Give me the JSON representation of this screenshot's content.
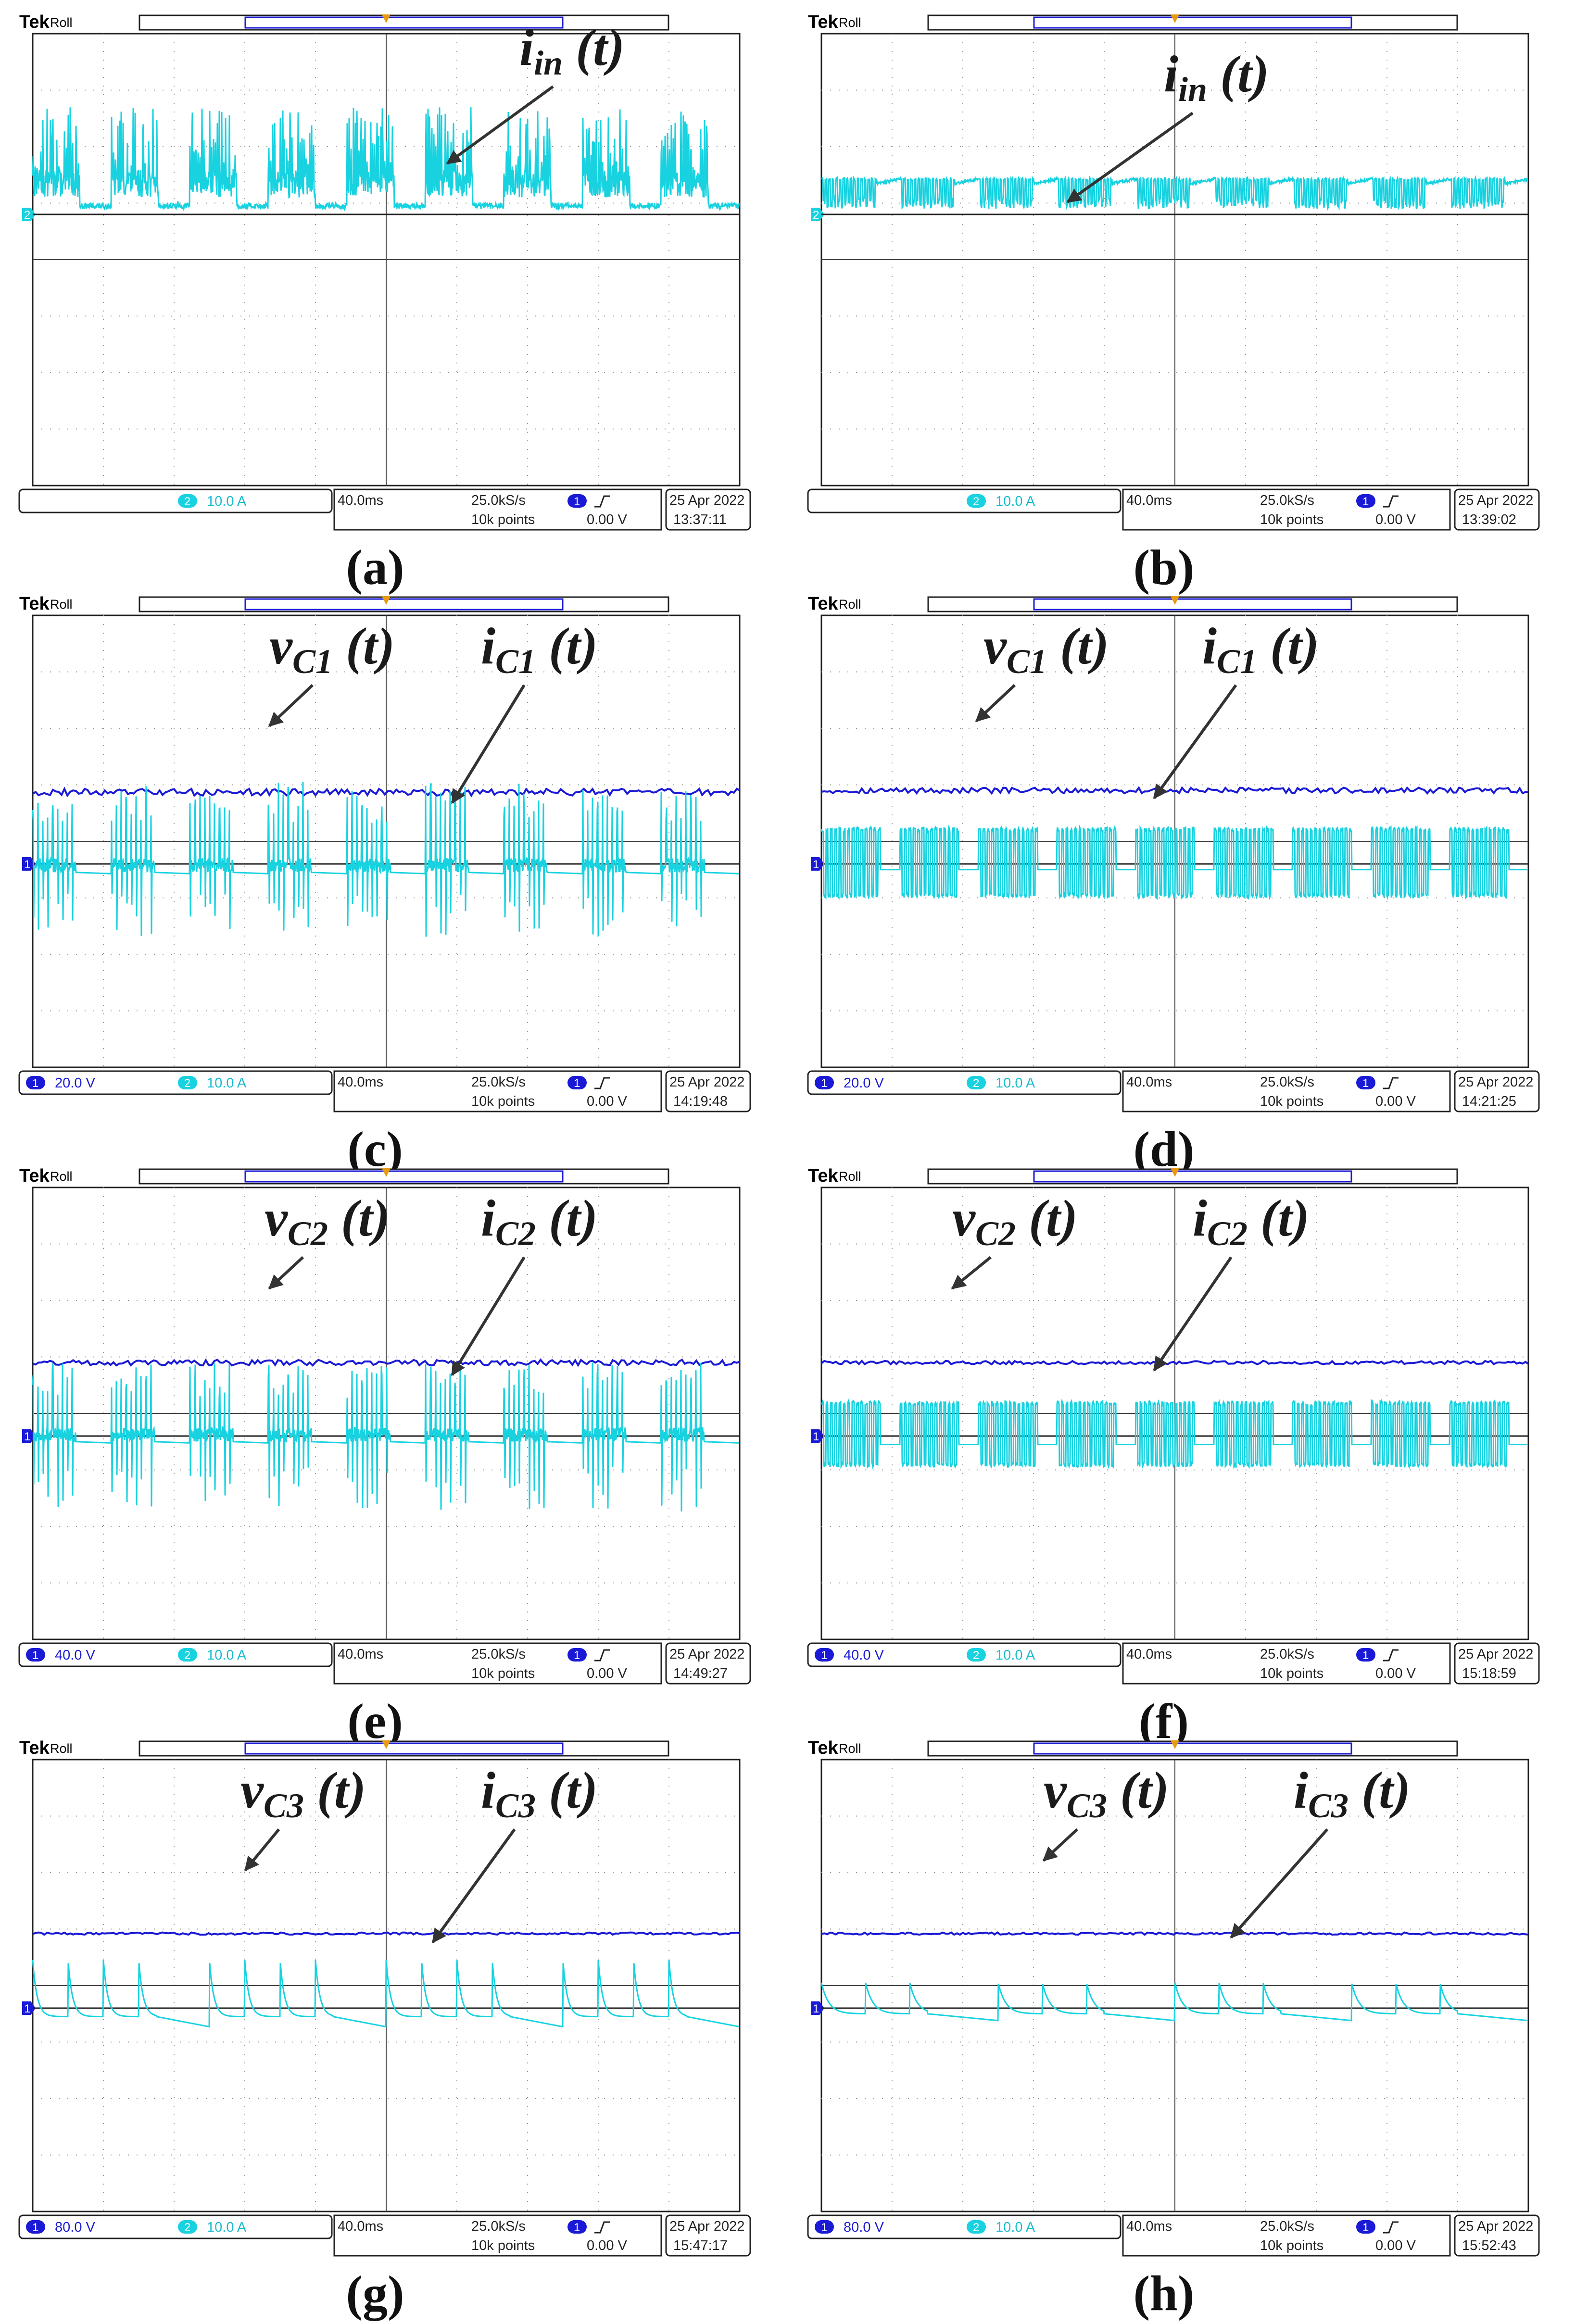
{
  "chart_data": [
    {
      "panel": "(a)",
      "type": "line",
      "scope_label": "Tek",
      "mode_label": "Roll",
      "time_per_div": "40.0ms",
      "sample_rate": "25.0kS/s",
      "record_length": "10k points",
      "trigger_level": "0.00 V",
      "date": "25 Apr  2022",
      "time": "13:37:11",
      "channels": [
        {
          "id": "2",
          "scale": "10.0 A"
        }
      ],
      "ground_marker": "2",
      "series": [
        {
          "name": "i_in (t)",
          "channel": "2",
          "label": "i",
          "label_sub": "in",
          "label_suffix": " (t)",
          "pattern": "spiky",
          "baseline_div": 0.0,
          "peak_div": 1.6,
          "min_div": 0.0,
          "bursts": 9
        }
      ]
    },
    {
      "panel": "(b)",
      "type": "line",
      "scope_label": "Tek",
      "mode_label": "Roll",
      "time_per_div": "40.0ms",
      "sample_rate": "25.0kS/s",
      "record_length": "10k points",
      "trigger_level": "0.00 V",
      "date": "25 Apr  2022",
      "time": "13:39:02",
      "channels": [
        {
          "id": "2",
          "scale": "10.0 A"
        }
      ],
      "ground_marker": "2",
      "series": [
        {
          "name": "i_in (t)",
          "channel": "2",
          "label": "i",
          "label_sub": "in",
          "label_suffix": " (t)",
          "pattern": "square",
          "baseline_div": 0.0,
          "peak_div": 0.65,
          "min_div": 0.1,
          "bursts": 9
        }
      ]
    },
    {
      "panel": "(c)",
      "type": "line",
      "scope_label": "Tek",
      "mode_label": "Roll",
      "time_per_div": "40.0ms",
      "sample_rate": "25.0kS/s",
      "record_length": "10k points",
      "trigger_level": "0.00 V",
      "date": "25 Apr  2022",
      "time": "14:19:48",
      "channels": [
        {
          "id": "1",
          "scale": "20.0 V"
        },
        {
          "id": "2",
          "scale": "10.0 A"
        }
      ],
      "ground_marker": "1",
      "series": [
        {
          "name": "v_C1 (t)",
          "channel": "1",
          "label": "v",
          "label_sub": "C1",
          "label_suffix": " (t)",
          "pattern": "flat",
          "level_div": 1.27,
          "ripple_div": 0.06
        },
        {
          "name": "i_C1 (t)",
          "channel": "2",
          "label": "i",
          "label_sub": "C1",
          "label_suffix": " (t)",
          "pattern": "bipolar",
          "baseline_div": -0.15,
          "peak_div": 1.45,
          "min_div": -1.3,
          "bursts": 9
        }
      ]
    },
    {
      "panel": "(d)",
      "type": "line",
      "scope_label": "Tek",
      "mode_label": "Roll",
      "time_per_div": "40.0ms",
      "sample_rate": "25.0kS/s",
      "record_length": "10k points",
      "trigger_level": "0.00 V",
      "date": "25 Apr  2022",
      "time": "14:21:25",
      "channels": [
        {
          "id": "1",
          "scale": "20.0 V"
        },
        {
          "id": "2",
          "scale": "10.0 A"
        }
      ],
      "ground_marker": "1",
      "series": [
        {
          "name": "v_C1 (t)",
          "channel": "1",
          "label": "v",
          "label_sub": "C1",
          "label_suffix": " (t)",
          "pattern": "flat",
          "level_div": 1.3,
          "ripple_div": 0.05
        },
        {
          "name": "i_C1 (t)",
          "channel": "2",
          "label": "i",
          "label_sub": "C1",
          "label_suffix": " (t)",
          "pattern": "bipolar_square",
          "baseline_div": -0.05,
          "peak_div": 0.65,
          "min_div": -0.6,
          "bursts": 9
        }
      ]
    },
    {
      "panel": "(e)",
      "type": "line",
      "scope_label": "Tek",
      "mode_label": "Roll",
      "time_per_div": "40.0ms",
      "sample_rate": "25.0kS/s",
      "record_length": "10k points",
      "trigger_level": "0.00 V",
      "date": "25 Apr  2022",
      "time": "14:49:27",
      "channels": [
        {
          "id": "1",
          "scale": "40.0 V"
        },
        {
          "id": "2",
          "scale": "10.0 A"
        }
      ],
      "ground_marker": "1",
      "series": [
        {
          "name": "v_C2 (t)",
          "channel": "1",
          "label": "v",
          "label_sub": "C2",
          "label_suffix": " (t)",
          "pattern": "flat",
          "level_div": 1.3,
          "ripple_div": 0.05
        },
        {
          "name": "i_C2 (t)",
          "channel": "2",
          "label": "i",
          "label_sub": "C2",
          "label_suffix": " (t)",
          "pattern": "bipolar",
          "baseline_div": -0.1,
          "peak_div": 1.3,
          "min_div": -1.35,
          "bursts": 9
        }
      ]
    },
    {
      "panel": "(f)",
      "type": "line",
      "scope_label": "Tek",
      "mode_label": "Roll",
      "time_per_div": "40.0ms",
      "sample_rate": "25.0kS/s",
      "record_length": "10k points",
      "trigger_level": "0.00 V",
      "date": "25 Apr  2022",
      "time": "15:18:59",
      "channels": [
        {
          "id": "1",
          "scale": "40.0 V"
        },
        {
          "id": "2",
          "scale": "10.0 A"
        }
      ],
      "ground_marker": "1",
      "series": [
        {
          "name": "v_C2 (t)",
          "channel": "1",
          "label": "v",
          "label_sub": "C2",
          "label_suffix": " (t)",
          "pattern": "flat",
          "level_div": 1.3,
          "ripple_div": 0.03
        },
        {
          "name": "i_C2 (t)",
          "channel": "2",
          "label": "i",
          "label_sub": "C2",
          "label_suffix": " (t)",
          "pattern": "bipolar_square",
          "baseline_div": -0.1,
          "peak_div": 0.62,
          "min_div": -0.55,
          "bursts": 9
        }
      ]
    },
    {
      "panel": "(g)",
      "type": "line",
      "scope_label": "Tek",
      "mode_label": "Roll",
      "time_per_div": "40.0ms",
      "sample_rate": "25.0kS/s",
      "record_length": "10k points",
      "trigger_level": "0.00 V",
      "date": "25 Apr  2022",
      "time": "15:47:17",
      "channels": [
        {
          "id": "1",
          "scale": "80.0 V"
        },
        {
          "id": "2",
          "scale": "10.0 A"
        }
      ],
      "ground_marker": "1",
      "series": [
        {
          "name": "v_C3 (t)",
          "channel": "1",
          "label": "v",
          "label_sub": "C3",
          "label_suffix": " (t)",
          "pattern": "flat",
          "level_div": 1.32,
          "ripple_div": 0.02
        },
        {
          "name": "i_C3 (t)",
          "channel": "2",
          "label": "i",
          "label_sub": "C3",
          "label_suffix": " (t)",
          "pattern": "decay",
          "baseline_div": -0.15,
          "peak_div": 1.0,
          "min_div": -0.2,
          "bursts": 4
        }
      ]
    },
    {
      "panel": "(h)",
      "type": "line",
      "scope_label": "Tek",
      "mode_label": "Roll",
      "time_per_div": "40.0ms",
      "sample_rate": "25.0kS/s",
      "record_length": "10k points",
      "trigger_level": "0.00 V",
      "date": "25 Apr  2022",
      "time": "15:52:43",
      "channels": [
        {
          "id": "1",
          "scale": "80.0 V"
        },
        {
          "id": "2",
          "scale": "10.0 A"
        }
      ],
      "ground_marker": "1",
      "series": [
        {
          "name": "v_C3 (t)",
          "channel": "1",
          "label": "v",
          "label_sub": "C3",
          "label_suffix": " (t)",
          "pattern": "flat",
          "level_div": 1.32,
          "ripple_div": 0.02
        },
        {
          "name": "i_C3 (t)",
          "channel": "2",
          "label": "i",
          "label_sub": "C3",
          "label_suffix": " (t)",
          "pattern": "decay_small",
          "baseline_div": -0.1,
          "peak_div": 0.55,
          "min_div": -0.15,
          "bursts": 4
        }
      ]
    }
  ],
  "colors": {
    "channel1": "#1a1ad6",
    "channel2": "#18d2e0",
    "grid": "#9a9a9a",
    "frame": "#202020",
    "trigger": "#e89a10",
    "arrow": "#333333"
  }
}
